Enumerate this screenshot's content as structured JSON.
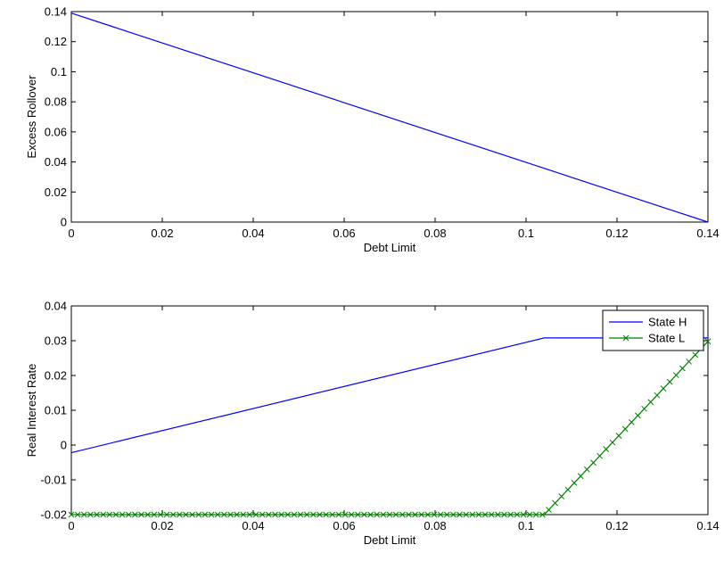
{
  "chart_data": [
    {
      "type": "line",
      "xlabel": "Debt Limit",
      "ylabel": "Excess Rollover",
      "xlim": [
        0,
        0.14
      ],
      "ylim": [
        0,
        0.14
      ],
      "xticks": [
        "0",
        "0.02",
        "0.04",
        "0.06",
        "0.08",
        "0.1",
        "0.12",
        "0.14"
      ],
      "yticks": [
        "0",
        "0.02",
        "0.04",
        "0.06",
        "0.08",
        "0.1",
        "0.12",
        "0.14"
      ],
      "grid": false,
      "series": [
        {
          "x": [
            0,
            0.14
          ],
          "y": [
            0.139,
            0
          ],
          "color": "#0000ff",
          "marker": "none"
        }
      ]
    },
    {
      "type": "line",
      "xlabel": "Debt Limit",
      "ylabel": "Real Interest Rate",
      "xlim": [
        0,
        0.14
      ],
      "ylim": [
        -0.02,
        0.04
      ],
      "xticks": [
        "0",
        "0.02",
        "0.04",
        "0.06",
        "0.08",
        "0.1",
        "0.12",
        "0.14"
      ],
      "yticks": [
        "-0.02",
        "-0.01",
        "0",
        "0.01",
        "0.02",
        "0.03",
        "0.04"
      ],
      "grid": false,
      "legend": "top-right",
      "series": [
        {
          "name": "State H",
          "x": [
            0,
            0.104,
            0.14
          ],
          "y": [
            -0.0022,
            0.0308,
            0.0308
          ],
          "color": "#0000ff",
          "marker": "none"
        },
        {
          "name": "State L",
          "x": [
            0,
            0.104,
            0.14
          ],
          "y": [
            -0.02,
            -0.02,
            0.0298
          ],
          "color": "#008000",
          "marker": "x",
          "marker_step": 0.0014
        }
      ]
    }
  ]
}
